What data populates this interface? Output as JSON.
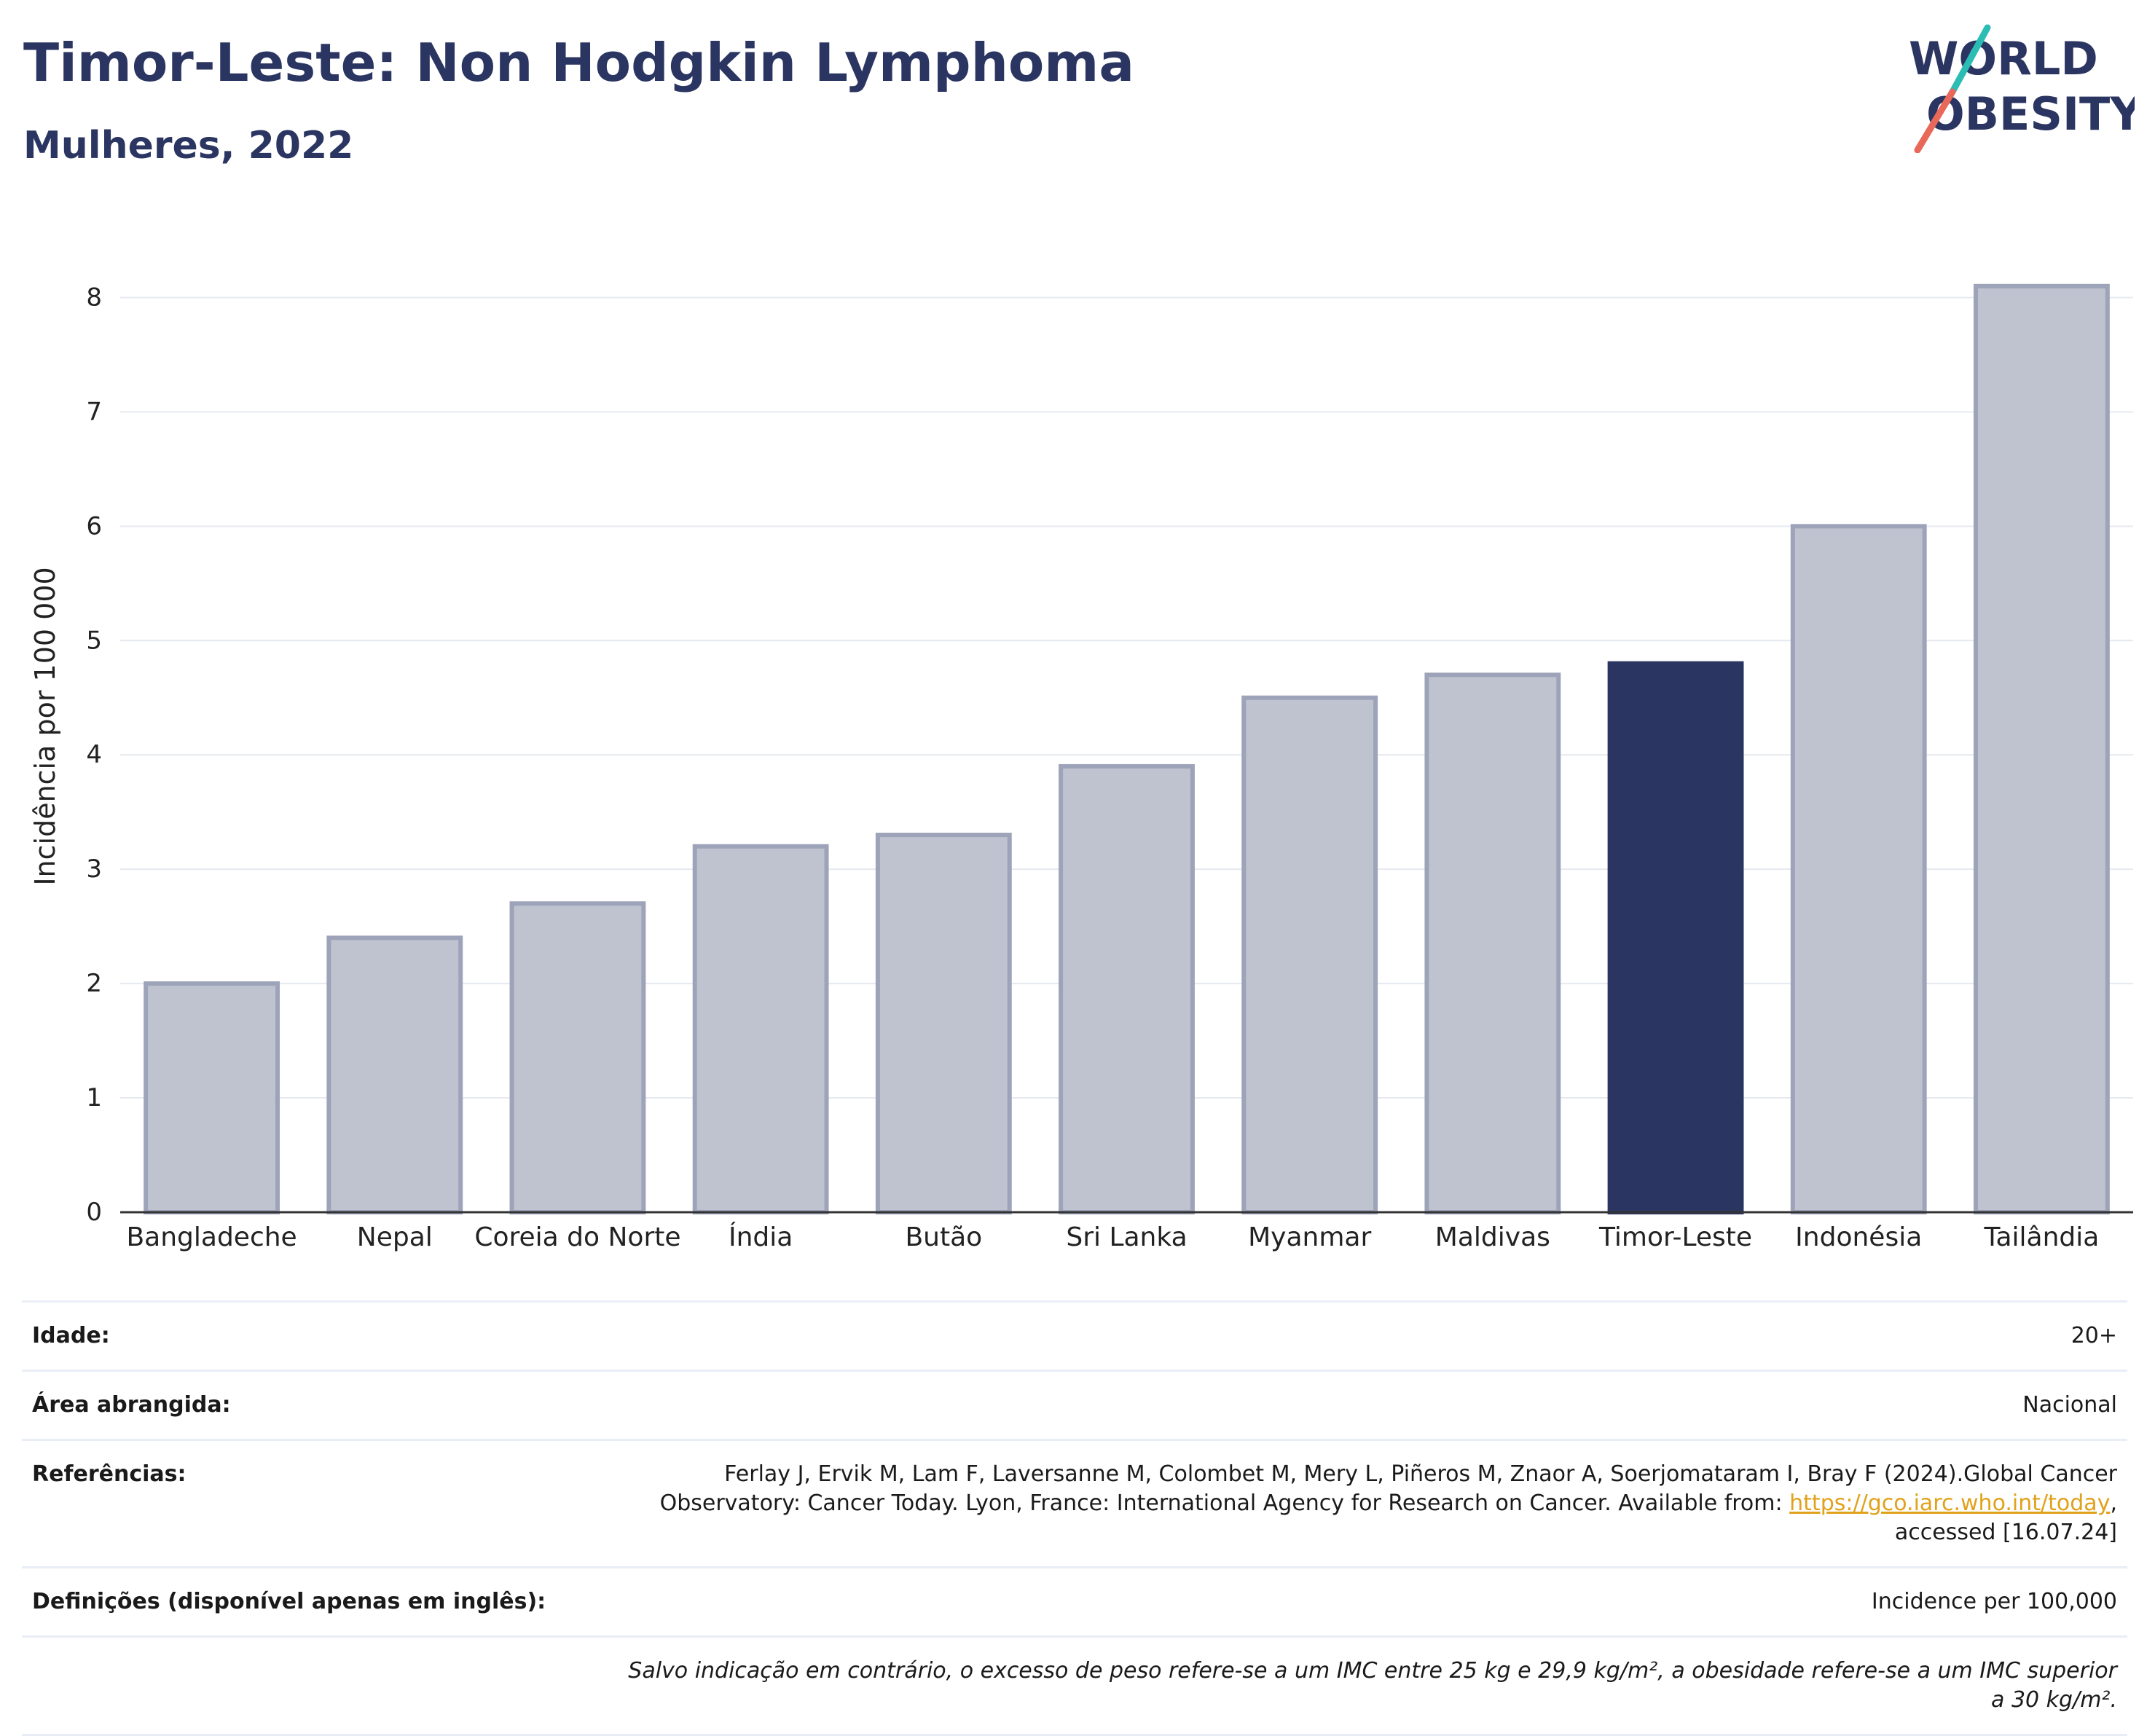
{
  "header": {
    "title": "Timor-Leste: Non Hodgkin Lymphoma",
    "subtitle": "Mulheres, 2022"
  },
  "logo": {
    "line1": "WORLD",
    "line2": "OBESITY"
  },
  "colors": {
    "highlight": "#2b3561",
    "bar_fill": "#bfc3cf",
    "bar_stroke": "#9da3b8",
    "title": "#2b3561",
    "link": "#e0a21b",
    "logo_teal": "#2bbcb4",
    "logo_coral": "#e8685a"
  },
  "chart_data": {
    "type": "bar",
    "title": "",
    "xlabel": "",
    "ylabel": "Incidência por 100 000",
    "categories": [
      "Bangladeche",
      "Nepal",
      "Coreia do Norte",
      "Índia",
      "Butão",
      "Sri Lanka",
      "Myanmar",
      "Maldivas",
      "Timor-Leste",
      "Indonésia",
      "Tailândia"
    ],
    "values": [
      2.0,
      2.4,
      2.7,
      3.2,
      3.3,
      3.9,
      4.5,
      4.7,
      4.8,
      6.0,
      8.1
    ],
    "highlight": "Timor-Leste",
    "ylim": [
      0,
      8.5
    ],
    "yticks": [
      "0",
      "1",
      "2",
      "3",
      "4",
      "5",
      "6",
      "7",
      "8"
    ],
    "grid": true
  },
  "meta": {
    "age_label": "Idade:",
    "age_value": "20+",
    "area_label": "Área abrangida:",
    "area_value": "Nacional",
    "ref_label": "Referências:",
    "ref_text_before": "Ferlay J, Ervik M, Lam F, Laversanne M, Colombet M, Mery L, Piñeros M, Znaor A, Soerjomataram I, Bray F (2024).Global Cancer Observatory: Cancer Today. Lyon, France: International Agency for Research on Cancer. Available from: ",
    "ref_link": "https://gco.iarc.who.int/today",
    "ref_text_after": ", accessed [16.07.24]",
    "def_label": "Definições (disponível apenas em inglês):",
    "def_value": "Incidence per 100,000",
    "note": "Salvo indicação em contrário, o excesso de peso refere-se a um IMC entre 25 kg e 29,9 kg/m², a obesidade refere-se a um IMC superior a 30 kg/m²."
  }
}
